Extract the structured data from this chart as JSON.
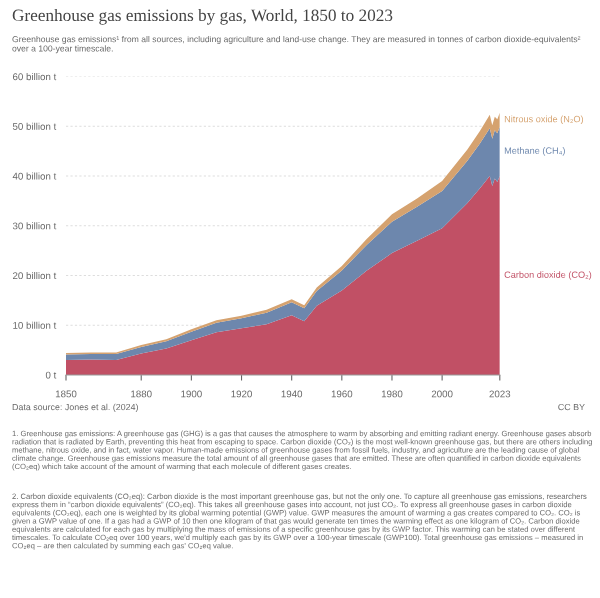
{
  "chart_data": {
    "type": "area",
    "stacked": true,
    "title": "Greenhouse gas emissions by gas, World, 1850 to 2023",
    "subtitle": "Greenhouse gas emissions¹ from all sources, including agriculture and land-use change. They are measured in tonnes of carbon dioxide-equivalents² over a 100-year timescale.",
    "x": [
      1850,
      1860,
      1870,
      1880,
      1890,
      1900,
      1910,
      1920,
      1930,
      1940,
      1945,
      1950,
      1960,
      1970,
      1980,
      1990,
      2000,
      2010,
      2015,
      2019,
      2020,
      2021,
      2022,
      2023
    ],
    "series": [
      {
        "name": "Carbon dioxide (CO₂)",
        "color": "#c15065",
        "values": [
          3.0,
          3.1,
          3.0,
          4.3,
          5.3,
          7.0,
          8.6,
          9.4,
          10.2,
          12.0,
          10.8,
          13.9,
          17.0,
          21.0,
          24.5,
          27.0,
          29.5,
          34.5,
          37.5,
          40.0,
          38.0,
          39.5,
          38.8,
          40.0
        ]
      },
      {
        "name": "Methane (CH₄)",
        "color": "#6d87ad",
        "values": [
          1.1,
          1.1,
          1.2,
          1.3,
          1.5,
          1.7,
          1.9,
          2.0,
          2.3,
          2.6,
          2.6,
          3.0,
          4.0,
          5.2,
          6.3,
          6.8,
          7.5,
          8.5,
          9.0,
          9.6,
          9.5,
          9.7,
          9.8,
          9.9
        ]
      },
      {
        "name": "Nitrous oxide (N₂O)",
        "color": "#d5a26f",
        "values": [
          0.3,
          0.3,
          0.3,
          0.4,
          0.4,
          0.5,
          0.5,
          0.5,
          0.6,
          0.6,
          0.6,
          0.7,
          0.9,
          1.2,
          1.5,
          1.7,
          2.0,
          2.3,
          2.5,
          2.7,
          2.7,
          2.7,
          2.8,
          2.8
        ]
      }
    ],
    "xlim": [
      1850,
      2023
    ],
    "xticks": [
      1850,
      1880,
      1900,
      1920,
      1940,
      1960,
      1980,
      2000,
      2023
    ],
    "ylim": [
      0,
      60
    ],
    "yticks": [
      {
        "value": 0,
        "label": "0 t"
      },
      {
        "value": 10,
        "label": "10 billion t"
      },
      {
        "value": 20,
        "label": "20 billion t"
      },
      {
        "value": 30,
        "label": "30 billion t"
      },
      {
        "value": 40,
        "label": "40 billion t"
      },
      {
        "value": 50,
        "label": "50 billion t"
      },
      {
        "value": 60,
        "label": "60 billion t"
      }
    ],
    "grid": "y",
    "annotations": [
      "Data source: Jones et al. (2024)",
      "CC BY",
      "1. Greenhouse gas emissions: A greenhouse gas (GHG) is a gas that causes the atmosphere to warm by absorbing and emitting radiant energy. Greenhouse gases absorb radiation that is radiated by Earth, preventing this heat from escaping to space. Carbon dioxide (CO₂) is the most well-known greenhouse gas, but there are others including methane, nitrous oxide, and in fact, water vapor. Human-made emissions of greenhouse gases from fossil fuels, industry, and agriculture are the leading cause of global climate change. Greenhouse gas emissions measure the total amount of all greenhouse gases that are emitted. These are often quantified in carbon dioxide equivalents (CO₂eq) which take account of the amount of warming that each molecule of different gases creates.",
      "2. Carbon dioxide equivalents (CO₂eq): Carbon dioxide is the most important greenhouse gas, but not the only one. To capture all greenhouse gas emissions, researchers express them in “carbon dioxide equivalents” (CO₂eq). This takes all greenhouse gases into account, not just CO₂. To express all greenhouse gases in carbon dioxide equivalents (CO₂eq), each one is weighted by its global warming potential (GWP) value. GWP measures the amount of warming a gas creates compared to CO₂. CO₂ is given a GWP value of one. If a gas had a GWP of 10 then one kilogram of that gas would generate ten times the warming effect as one kilogram of CO₂. Carbon dioxide equivalents are calculated for each gas by multiplying the mass of emissions of a specific greenhouse gas by its GWP factor. This warming can be stated over different timescales. To calculate CO₂eq over 100 years, we'd multiply each gas by its GWP over a 100-year timescale (GWP100). Total greenhouse gas emissions – measured in CO₂eq – are then calculated by summing each gas' CO₂eq value."
    ]
  }
}
